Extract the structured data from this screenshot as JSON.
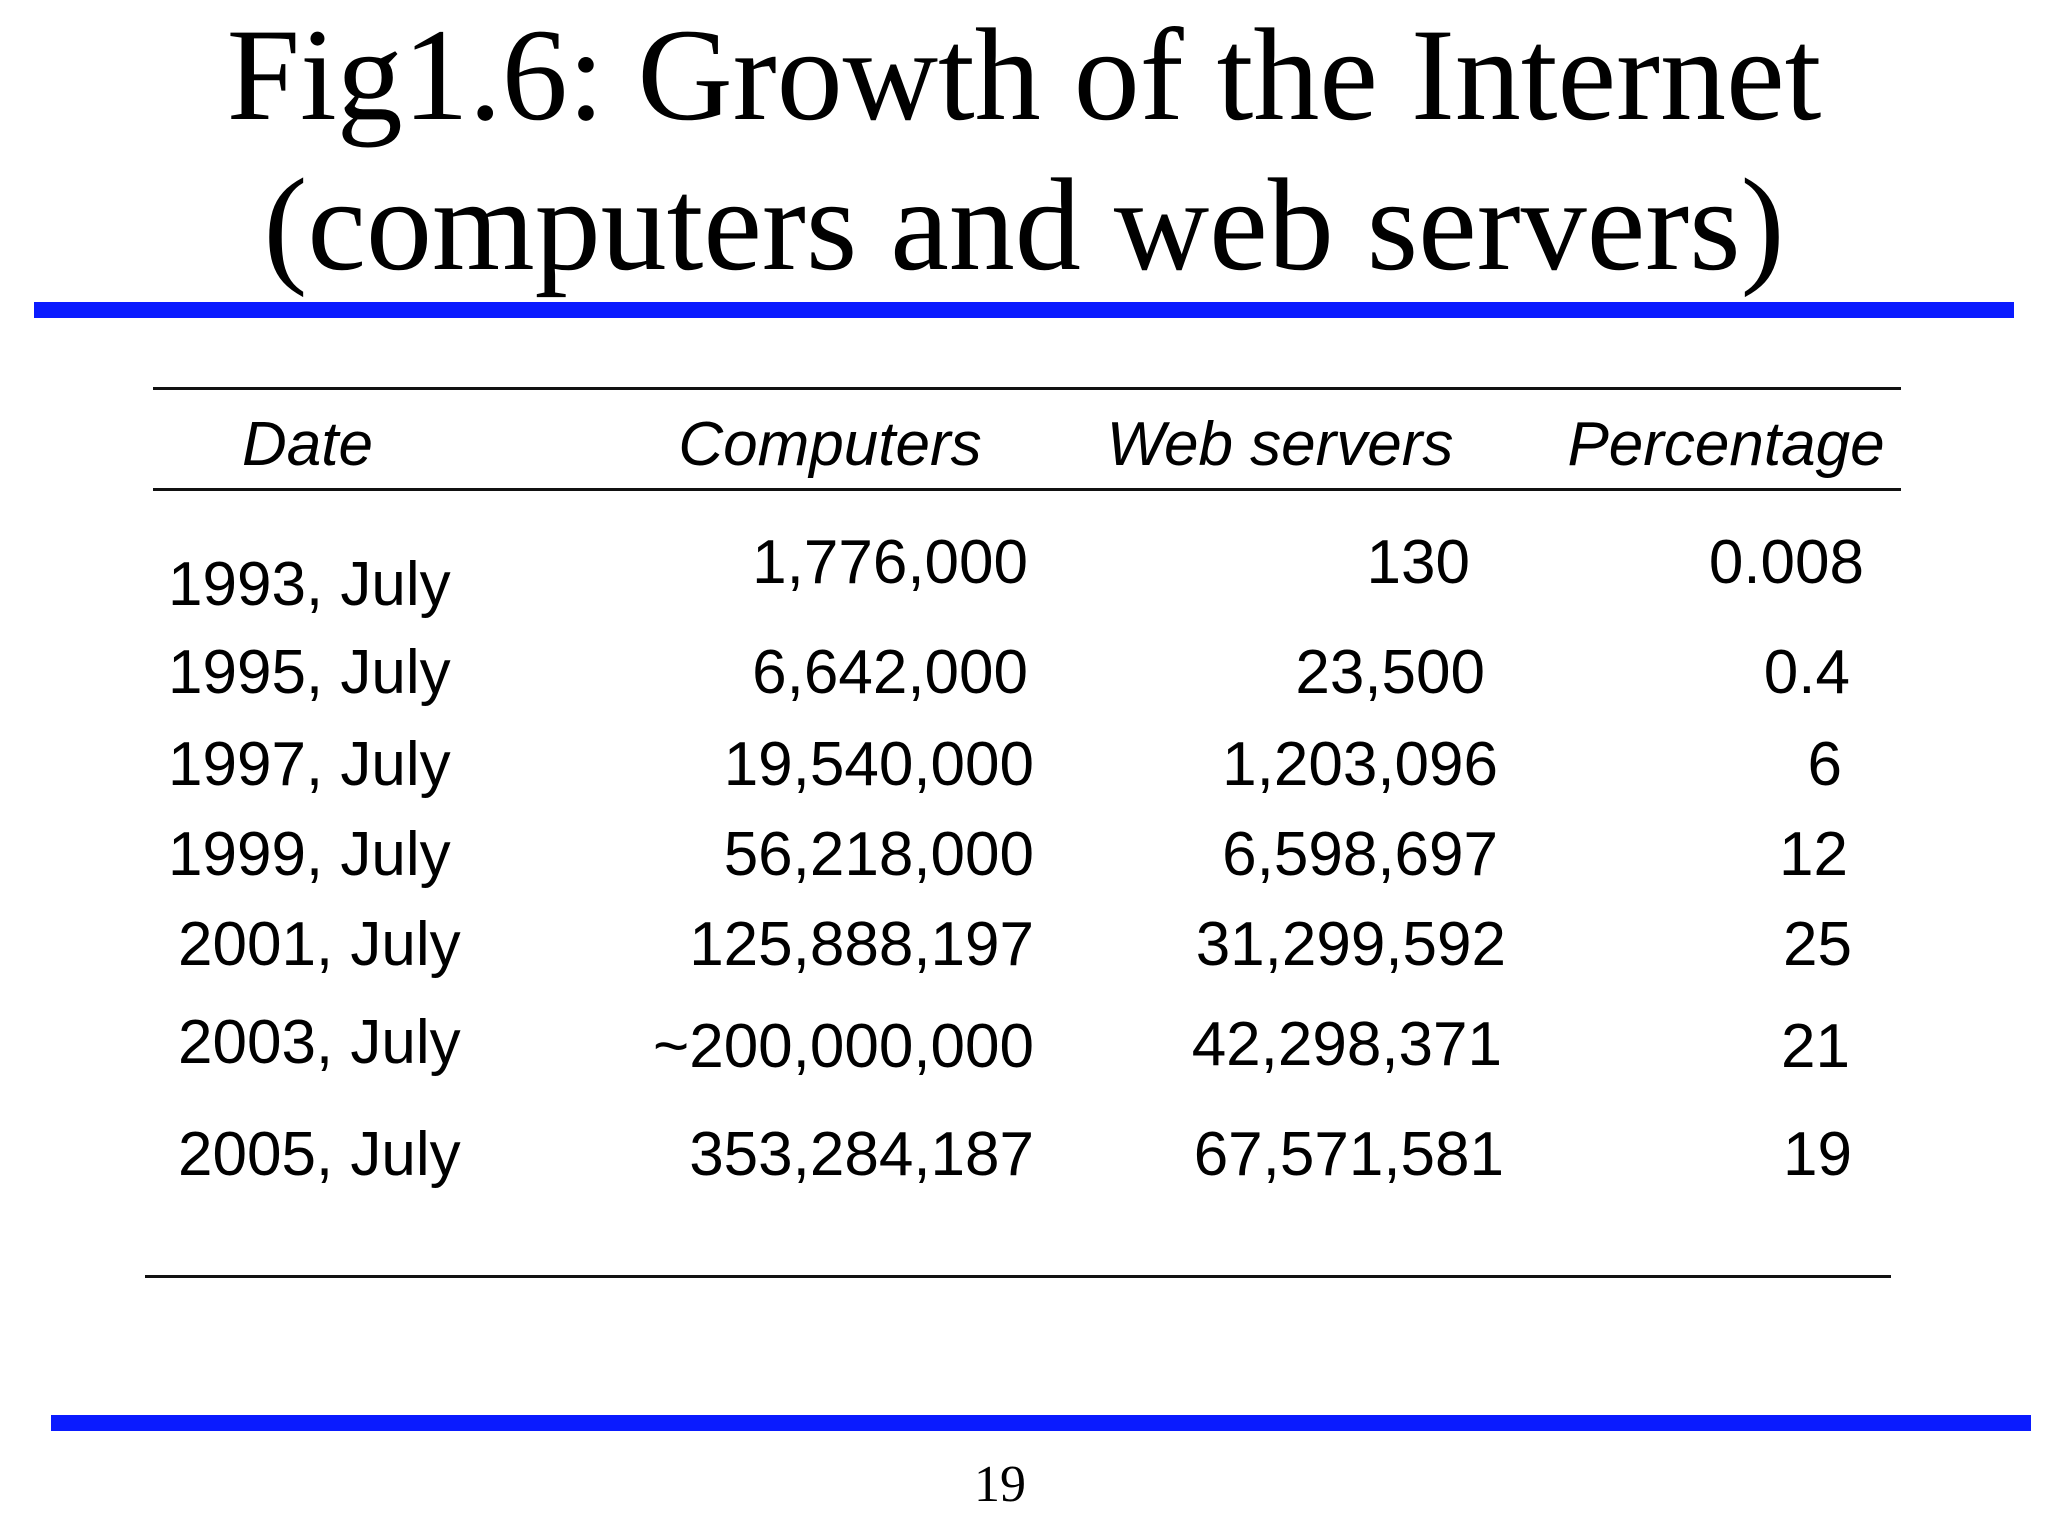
{
  "slide": {
    "title_line1": "Fig1.6: Growth of the Internet",
    "title_line2": "(computers and web servers)",
    "page_number": "19"
  },
  "table": {
    "headers": [
      "Date",
      "Computers",
      "Web servers",
      "Percentage"
    ],
    "rows": [
      [
        "1993, July",
        "1,776,000",
        "130",
        "0.008"
      ],
      [
        "1995, July",
        "6,642,000",
        "23,500",
        "0.4"
      ],
      [
        "1997, July",
        "19,540,000",
        "1,203,096",
        "6"
      ],
      [
        "1999, July",
        "56,218,000",
        "6,598,697",
        "12"
      ],
      [
        "2001, July",
        "125,888,197",
        "31,299,592",
        "25"
      ],
      [
        "2003, July",
        "~200,000,000",
        "42,298,371",
        "21"
      ],
      [
        "2005, July",
        "353,284,187",
        "67,571,581",
        "19"
      ]
    ]
  },
  "colors": {
    "rule_blue": "#0a1bff",
    "text": "#000000"
  }
}
